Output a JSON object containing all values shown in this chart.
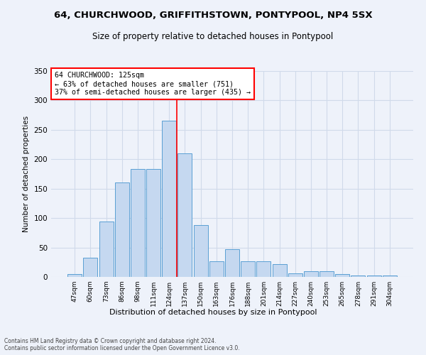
{
  "title1": "64, CHURCHWOOD, GRIFFITHSTOWN, PONTYPOOL, NP4 5SX",
  "title2": "Size of property relative to detached houses in Pontypool",
  "xlabel": "Distribution of detached houses by size in Pontypool",
  "ylabel": "Number of detached properties",
  "categories": [
    "47sqm",
    "60sqm",
    "73sqm",
    "86sqm",
    "98sqm",
    "111sqm",
    "124sqm",
    "137sqm",
    "150sqm",
    "163sqm",
    "176sqm",
    "188sqm",
    "201sqm",
    "214sqm",
    "227sqm",
    "240sqm",
    "253sqm",
    "265sqm",
    "278sqm",
    "291sqm",
    "304sqm"
  ],
  "values": [
    5,
    33,
    94,
    160,
    184,
    184,
    265,
    210,
    88,
    27,
    47,
    27,
    27,
    22,
    6,
    10,
    10,
    5,
    3,
    2,
    3
  ],
  "bar_color": "#c5d8f0",
  "bar_edge_color": "#5a9fd4",
  "vline_x_idx": 6,
  "vline_color": "red",
  "annotation_title": "64 CHURCHWOOD: 125sqm",
  "annotation_line1": "← 63% of detached houses are smaller (751)",
  "annotation_line2": "37% of semi-detached houses are larger (435) →",
  "box_color": "white",
  "box_edge_color": "red",
  "footer1": "Contains HM Land Registry data © Crown copyright and database right 2024.",
  "footer2": "Contains public sector information licensed under the Open Government Licence v3.0.",
  "ylim": [
    0,
    350
  ],
  "bg_color": "#eef2fa",
  "grid_color": "#d0daea"
}
